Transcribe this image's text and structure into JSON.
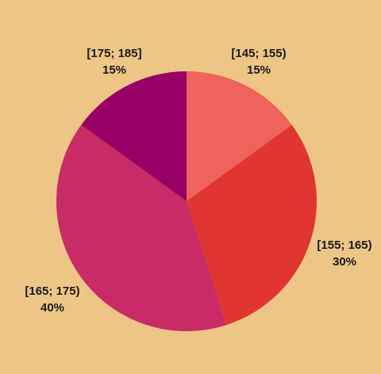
{
  "background_color": "#EDC686",
  "chart_data": {
    "type": "pie",
    "title": "",
    "categories": [
      "[145; 155)",
      "[155; 165)",
      "[165; 175)",
      "[175; 185]"
    ],
    "values": [
      15,
      30,
      40,
      15
    ],
    "percent_labels": [
      "15%",
      "30%",
      "40%",
      "15%"
    ],
    "colors": [
      "#F0625C",
      "#E03530",
      "#C82B65",
      "#990066"
    ],
    "start_angle_deg": 0,
    "direction": "clockwise",
    "legend": "none"
  }
}
